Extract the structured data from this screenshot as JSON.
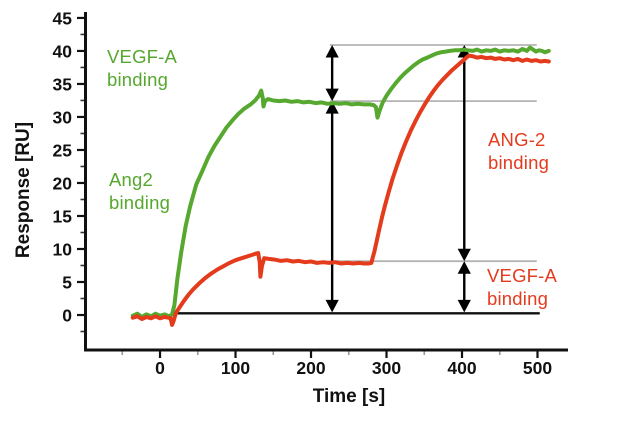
{
  "labels": {
    "y_axis_title": "Response [RU]",
    "x_axis_title": "Time [s]",
    "green_top": "VEGF-A binding",
    "green_mid": "Ang2 binding",
    "red_right": "ANG-2 binding",
    "red_bottom": "VEGF-A binding"
  },
  "colors": {
    "green": "#56a82f",
    "red": "#e43b1d",
    "axis": "#111111",
    "reference_gray": "#b4b4b4",
    "minor_tick": "#999999",
    "arrow": "#000000",
    "background": "#ffffff"
  },
  "chart_data": {
    "type": "line",
    "title": "",
    "xlabel": "Time [s]",
    "ylabel": "Response [RU]",
    "xlim": [
      -100.7,
      540.4
    ],
    "ylim": [
      -5.3,
      45.9
    ],
    "grid": "off",
    "legend": "none",
    "x_ticks": [
      0,
      100,
      200,
      300,
      400,
      500
    ],
    "x_minor_ticks": [
      -50,
      50,
      150,
      250,
      350,
      450
    ],
    "y_ticks": [
      0,
      5,
      10,
      15,
      20,
      25,
      30,
      35,
      40,
      45
    ],
    "y_minor_ticks": [
      -2.5,
      2.5,
      7.5,
      12.5,
      17.5,
      22.5,
      27.5,
      32.5,
      37.5,
      42.5
    ],
    "series": [
      {
        "name": "Ang2 binding then VEGF-A binding (green sensorgram)",
        "color": "#56a82f",
        "points": [
          [
            -36,
            -0.1
          ],
          [
            -30,
            0.2
          ],
          [
            -24,
            -0.3
          ],
          [
            -18,
            0.1
          ],
          [
            -12,
            -0.2
          ],
          [
            -6,
            0.2
          ],
          [
            0,
            -0.1
          ],
          [
            6,
            0.1
          ],
          [
            12,
            -0.2
          ],
          [
            16,
            0.1
          ],
          [
            19,
            1.5
          ],
          [
            23,
            5.5
          ],
          [
            28,
            9.5
          ],
          [
            34,
            13.5
          ],
          [
            40,
            16.5
          ],
          [
            48,
            19.8
          ],
          [
            56,
            21.8
          ],
          [
            64,
            23.9
          ],
          [
            72,
            25.6
          ],
          [
            80,
            27.0
          ],
          [
            88,
            28.4
          ],
          [
            96,
            29.5
          ],
          [
            104,
            30.5
          ],
          [
            112,
            31.3
          ],
          [
            120,
            31.9
          ],
          [
            126,
            32.5
          ],
          [
            131,
            33.2
          ],
          [
            134,
            34.0
          ],
          [
            136,
            32.9
          ],
          [
            137,
            31.6
          ],
          [
            139,
            32.4
          ],
          [
            143,
            32.7
          ],
          [
            150,
            32.5
          ],
          [
            158,
            32.4
          ],
          [
            166,
            32.5
          ],
          [
            174,
            32.3
          ],
          [
            182,
            32.4
          ],
          [
            190,
            32.2
          ],
          [
            198,
            32.3
          ],
          [
            206,
            32.1
          ],
          [
            214,
            32.2
          ],
          [
            222,
            32.0
          ],
          [
            230,
            32.1
          ],
          [
            238,
            32.0
          ],
          [
            246,
            32.1
          ],
          [
            254,
            31.9
          ],
          [
            262,
            32.0
          ],
          [
            270,
            31.9
          ],
          [
            278,
            31.9
          ],
          [
            283,
            31.8
          ],
          [
            286,
            31.5
          ],
          [
            288,
            29.9
          ],
          [
            291,
            31.0
          ],
          [
            295,
            32.2
          ],
          [
            300,
            33.2
          ],
          [
            306,
            34.2
          ],
          [
            312,
            35.1
          ],
          [
            318,
            35.9
          ],
          [
            324,
            36.6
          ],
          [
            330,
            37.2
          ],
          [
            336,
            37.8
          ],
          [
            342,
            38.3
          ],
          [
            348,
            38.7
          ],
          [
            354,
            39.0
          ],
          [
            360,
            39.3
          ],
          [
            366,
            39.6
          ],
          [
            372,
            39.8
          ],
          [
            378,
            39.9
          ],
          [
            384,
            40.0
          ],
          [
            390,
            40.1
          ],
          [
            396,
            40.1
          ],
          [
            402,
            40.2
          ],
          [
            408,
            40.1
          ],
          [
            414,
            40.0
          ],
          [
            420,
            40.2
          ],
          [
            426,
            39.9
          ],
          [
            432,
            40.1
          ],
          [
            438,
            40.0
          ],
          [
            444,
            40.2
          ],
          [
            450,
            39.9
          ],
          [
            456,
            40.1
          ],
          [
            462,
            40.0
          ],
          [
            468,
            40.1
          ],
          [
            474,
            39.9
          ],
          [
            480,
            40.3
          ],
          [
            486,
            40.0
          ],
          [
            490,
            40.5
          ],
          [
            494,
            40.2
          ],
          [
            498,
            39.9
          ],
          [
            502,
            40.1
          ],
          [
            506,
            40.0
          ],
          [
            510,
            39.8
          ],
          [
            515,
            40.0
          ]
        ]
      },
      {
        "name": "VEGF-A binding then ANG-2 binding (red sensorgram)",
        "color": "#e43b1d",
        "points": [
          [
            -36,
            -0.4
          ],
          [
            -30,
            -0.2
          ],
          [
            -24,
            -0.6
          ],
          [
            -18,
            -0.3
          ],
          [
            -12,
            -0.5
          ],
          [
            -6,
            -0.2
          ],
          [
            0,
            -0.5
          ],
          [
            6,
            -0.3
          ],
          [
            11,
            -0.4
          ],
          [
            14,
            -0.5
          ],
          [
            16,
            -1.5
          ],
          [
            18,
            -0.9
          ],
          [
            21,
            0.3
          ],
          [
            26,
            1.2
          ],
          [
            32,
            2.2
          ],
          [
            38,
            3.1
          ],
          [
            44,
            3.9
          ],
          [
            52,
            4.8
          ],
          [
            60,
            5.6
          ],
          [
            68,
            6.3
          ],
          [
            76,
            6.9
          ],
          [
            84,
            7.4
          ],
          [
            92,
            7.9
          ],
          [
            100,
            8.3
          ],
          [
            108,
            8.6
          ],
          [
            116,
            8.9
          ],
          [
            122,
            9.1
          ],
          [
            127,
            9.3
          ],
          [
            130,
            9.4
          ],
          [
            132,
            8.0
          ],
          [
            133,
            5.8
          ],
          [
            135,
            7.4
          ],
          [
            138,
            8.6
          ],
          [
            144,
            8.5
          ],
          [
            152,
            8.4
          ],
          [
            160,
            8.2
          ],
          [
            168,
            8.3
          ],
          [
            176,
            8.1
          ],
          [
            184,
            8.2
          ],
          [
            192,
            8.0
          ],
          [
            200,
            8.1
          ],
          [
            208,
            7.9
          ],
          [
            216,
            8.0
          ],
          [
            224,
            7.9
          ],
          [
            232,
            8.0
          ],
          [
            240,
            7.8
          ],
          [
            248,
            7.9
          ],
          [
            256,
            7.8
          ],
          [
            264,
            7.9
          ],
          [
            270,
            7.8
          ],
          [
            276,
            7.8
          ],
          [
            280,
            7.9
          ],
          [
            282,
            8.8
          ],
          [
            284,
            9.6
          ],
          [
            287,
            11.2
          ],
          [
            290,
            12.8
          ],
          [
            294,
            14.8
          ],
          [
            298,
            16.6
          ],
          [
            303,
            18.7
          ],
          [
            308,
            20.6
          ],
          [
            314,
            22.7
          ],
          [
            320,
            24.6
          ],
          [
            326,
            26.3
          ],
          [
            332,
            27.9
          ],
          [
            338,
            29.3
          ],
          [
            344,
            30.6
          ],
          [
            350,
            31.8
          ],
          [
            356,
            32.9
          ],
          [
            362,
            33.9
          ],
          [
            368,
            34.8
          ],
          [
            374,
            35.6
          ],
          [
            380,
            36.3
          ],
          [
            386,
            37.0
          ],
          [
            392,
            37.6
          ],
          [
            398,
            38.2
          ],
          [
            404,
            38.8
          ],
          [
            409,
            39.3
          ],
          [
            414,
            39.2
          ],
          [
            420,
            39.0
          ],
          [
            426,
            39.1
          ],
          [
            432,
            38.9
          ],
          [
            438,
            39.0
          ],
          [
            444,
            38.8
          ],
          [
            450,
            38.9
          ],
          [
            456,
            38.7
          ],
          [
            462,
            38.8
          ],
          [
            468,
            38.6
          ],
          [
            474,
            38.8
          ],
          [
            480,
            38.5
          ],
          [
            486,
            38.7
          ],
          [
            492,
            38.5
          ],
          [
            498,
            38.6
          ],
          [
            504,
            38.4
          ],
          [
            510,
            38.5
          ],
          [
            515,
            38.4
          ]
        ]
      }
    ],
    "reference_lines": [
      {
        "y": 40.9,
        "t_from": 225,
        "t_to": 499,
        "color": "#b4b4b4",
        "width": 1.8
      },
      {
        "y": 32.4,
        "t_from": 225,
        "t_to": 499,
        "color": "#b4b4b4",
        "width": 1.8
      },
      {
        "y": 8.15,
        "t_from": 225,
        "t_to": 499,
        "color": "#b4b4b4",
        "width": 1.8
      },
      {
        "y": 0.25,
        "t_from": 16,
        "t_to": 503,
        "color": "#111111",
        "width": 2.4
      }
    ],
    "measurement_arrows": [
      {
        "t": 228,
        "y_from": 0.4,
        "y_to": 32.4,
        "meaning": "Ang2 binding level (green, ~32 RU)"
      },
      {
        "t": 228,
        "y_from": 32.4,
        "y_to": 40.9,
        "meaning": "VEGF-A binding level (green, ~8 RU)"
      },
      {
        "t": 403,
        "y_from": 0.4,
        "y_to": 8.15,
        "meaning": "VEGF-A binding level (red, ~8 RU)"
      },
      {
        "t": 403,
        "y_from": 8.15,
        "y_to": 40.9,
        "meaning": "ANG-2 binding level (red, ~32 RU)"
      }
    ]
  }
}
